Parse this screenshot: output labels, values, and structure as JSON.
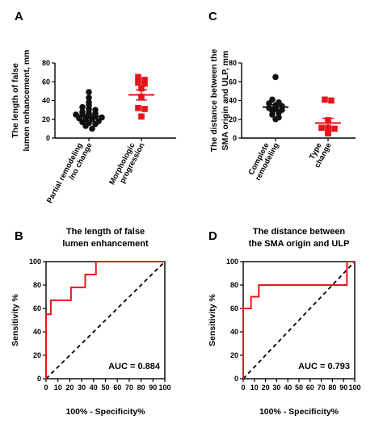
{
  "chart_data": [
    {
      "panel": "A",
      "type": "scatter",
      "ylabel_lines": [
        "The length of false",
        "lumen enhancement, mm"
      ],
      "ylim": [
        0,
        80
      ],
      "yticks": [
        0,
        20,
        40,
        60,
        80
      ],
      "categories": [
        {
          "lines": [
            "Partial remodeling",
            "/no change"
          ]
        },
        {
          "lines": [
            "Morphologic",
            "progression"
          ]
        }
      ],
      "series": [
        {
          "marker": "circle",
          "color": "#111111",
          "mean": 23,
          "sem": 2.2,
          "values": [
            49,
            43,
            38,
            35,
            33,
            31,
            30,
            28,
            27,
            26,
            25,
            25,
            24,
            23,
            22,
            21,
            20,
            20,
            18,
            17,
            16,
            15,
            13,
            10
          ]
        },
        {
          "marker": "square",
          "color": "#e8141c",
          "mean": 46,
          "sem": 5.5,
          "values": [
            65,
            62,
            59,
            58,
            53,
            44,
            32,
            31,
            23
          ]
        }
      ]
    },
    {
      "panel": "C",
      "type": "scatter",
      "ylabel_lines": [
        "The distance between the",
        "SMA origin and ULP, mm"
      ],
      "ylim": [
        0,
        80
      ],
      "yticks": [
        0,
        20,
        40,
        60,
        80
      ],
      "categories": [
        {
          "lines": [
            "Complete",
            "remodeling"
          ]
        },
        {
          "lines": [
            "Type",
            "change"
          ]
        }
      ],
      "series": [
        {
          "marker": "circle",
          "color": "#111111",
          "mean": 33,
          "sem": 2.5,
          "values": [
            65,
            41,
            38,
            37,
            35,
            34,
            32,
            31,
            30,
            29,
            27,
            25,
            22,
            20
          ]
        },
        {
          "marker": "square",
          "color": "#e8141c",
          "mean": 16,
          "sem": 5,
          "values": [
            41,
            40,
            19,
            11,
            11,
            10,
            6,
            5
          ]
        }
      ]
    },
    {
      "panel": "B",
      "type": "line",
      "title_lines": [
        "The length of false",
        "lumen enhancement"
      ],
      "xlabel": "100% - Specificity%",
      "ylabel": "Sensitivity %",
      "xlim": [
        0,
        100
      ],
      "ylim": [
        0,
        100
      ],
      "xticks": [
        0,
        10,
        20,
        30,
        40,
        50,
        60,
        70,
        80,
        90,
        100
      ],
      "yticks": [
        0,
        20,
        40,
        60,
        80,
        100
      ],
      "roc": {
        "color": "#e8141c",
        "x": [
          0,
          0,
          4,
          4,
          21,
          21,
          33,
          33,
          42,
          42,
          100
        ],
        "y": [
          0,
          55,
          55,
          67,
          67,
          78,
          78,
          89,
          89,
          100,
          100
        ]
      },
      "reference": {
        "x": [
          0,
          100
        ],
        "y": [
          0,
          100
        ],
        "style": "dashed"
      },
      "auc": "AUC = 0.884"
    },
    {
      "panel": "D",
      "type": "line",
      "title_lines": [
        "The distance between",
        "the SMA origin and ULP"
      ],
      "xlabel": "100% - Specificity%",
      "ylabel": "Sensitivity %",
      "xlim": [
        0,
        100
      ],
      "ylim": [
        0,
        100
      ],
      "xticks": [
        0,
        10,
        20,
        30,
        40,
        50,
        60,
        70,
        80,
        90,
        100
      ],
      "yticks": [
        0,
        20,
        40,
        60,
        80,
        100
      ],
      "roc": {
        "color": "#e8141c",
        "x": [
          0,
          0,
          7,
          7,
          14,
          14,
          93,
          93,
          100
        ],
        "y": [
          0,
          60,
          60,
          70,
          70,
          80,
          80,
          100,
          100
        ]
      },
      "reference": {
        "x": [
          0,
          100
        ],
        "y": [
          0,
          100
        ],
        "style": "dashed"
      },
      "auc": "AUC = 0.793"
    }
  ]
}
